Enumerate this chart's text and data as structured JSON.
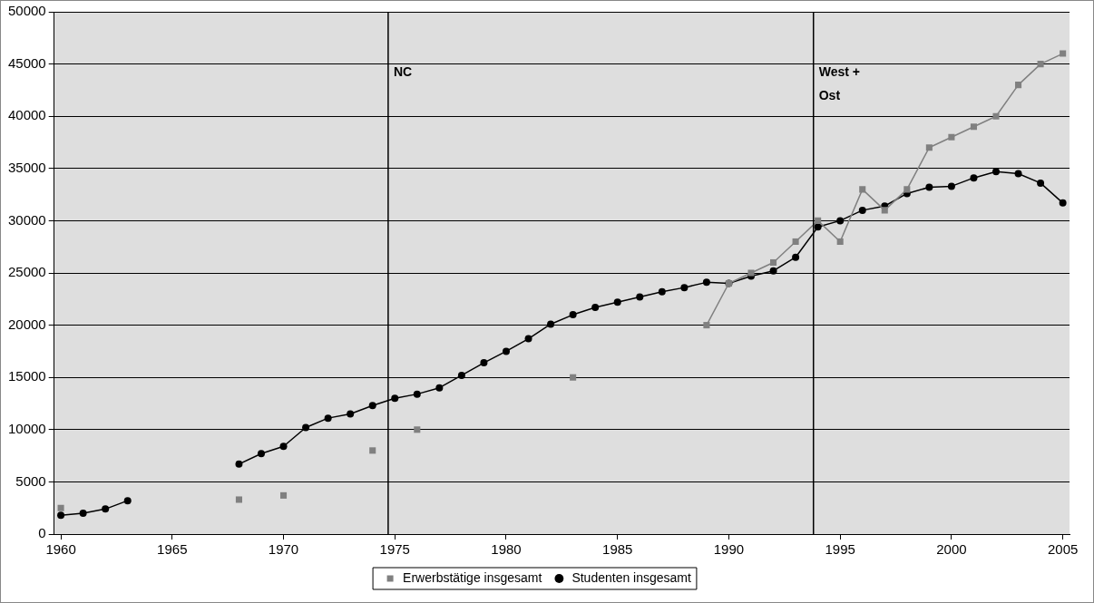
{
  "chart_data": {
    "type": "line",
    "x": [
      1960,
      1961,
      1962,
      1963,
      1964,
      1965,
      1966,
      1967,
      1968,
      1969,
      1970,
      1971,
      1972,
      1973,
      1974,
      1975,
      1976,
      1977,
      1978,
      1979,
      1980,
      1981,
      1982,
      1983,
      1984,
      1985,
      1986,
      1987,
      1988,
      1989,
      1990,
      1991,
      1992,
      1993,
      1994,
      1995,
      1996,
      1997,
      1998,
      1999,
      2000,
      2001,
      2002,
      2003,
      2004,
      2005
    ],
    "series": [
      {
        "name": "Studenten insgesamt",
        "color": "#000000",
        "marker": "circle",
        "values": [
          1800,
          2000,
          2400,
          3200,
          null,
          null,
          null,
          null,
          6700,
          7700,
          8400,
          10200,
          11100,
          11500,
          12300,
          13000,
          13400,
          14000,
          15200,
          16400,
          17500,
          18700,
          20100,
          21000,
          21700,
          22200,
          22700,
          23200,
          23600,
          24100,
          24000,
          24700,
          25200,
          26500,
          29400,
          30000,
          31000,
          31400,
          32600,
          33200,
          33300,
          34100,
          34700,
          34500,
          33600,
          31700
        ]
      },
      {
        "name": "Erwerbstätige insgesamt",
        "color": "#808080",
        "marker": "square",
        "values": [
          2500,
          null,
          null,
          null,
          null,
          null,
          null,
          null,
          3300,
          null,
          3700,
          null,
          null,
          null,
          8000,
          null,
          10000,
          null,
          null,
          null,
          null,
          null,
          null,
          15000,
          null,
          null,
          null,
          null,
          null,
          20000,
          24000,
          25000,
          26000,
          28000,
          30000,
          28000,
          33000,
          31000,
          33000,
          37000,
          38000,
          39000,
          40000,
          43000,
          45000,
          46000
        ]
      }
    ],
    "xlim": [
      1959.7,
      2005.3
    ],
    "xticks": [
      1960,
      1965,
      1970,
      1975,
      1980,
      1985,
      1990,
      1995,
      2000,
      2005
    ],
    "ylim": [
      0,
      50000
    ],
    "yticks": [
      0,
      5000,
      10000,
      15000,
      20000,
      25000,
      30000,
      35000,
      40000,
      45000,
      50000
    ],
    "grid": "y",
    "legend": "bottom",
    "line_style": "solid",
    "ref_lines": [
      {
        "axis": "x",
        "value": 1974.7,
        "label": "NC",
        "color": "#000000"
      },
      {
        "axis": "x",
        "value": 1993.8,
        "label": "West + Ost",
        "color": "#000000"
      }
    ]
  }
}
